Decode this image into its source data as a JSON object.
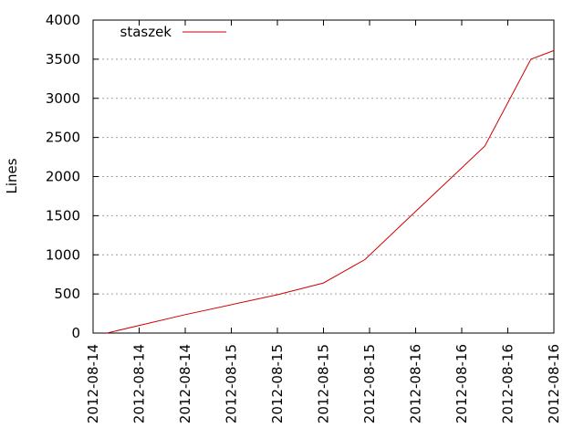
{
  "chart_data": {
    "type": "line",
    "ylabel": "Lines",
    "ylim": [
      0,
      4000
    ],
    "yticks": [
      0,
      500,
      1000,
      1500,
      2000,
      2500,
      3000,
      3500,
      4000
    ],
    "xlim": [
      0,
      10
    ],
    "xticks": [
      {
        "x": 0,
        "label": "2012-08-14"
      },
      {
        "x": 1,
        "label": "2012-08-14"
      },
      {
        "x": 2,
        "label": "2012-08-14"
      },
      {
        "x": 3,
        "label": "2012-08-15"
      },
      {
        "x": 4,
        "label": "2012-08-15"
      },
      {
        "x": 5,
        "label": "2012-08-15"
      },
      {
        "x": 6,
        "label": "2012-08-15"
      },
      {
        "x": 7,
        "label": "2012-08-16"
      },
      {
        "x": 8,
        "label": "2012-08-16"
      },
      {
        "x": 9,
        "label": "2012-08-16"
      },
      {
        "x": 10,
        "label": "2012-08-16"
      }
    ],
    "grid": "horizontal dashed",
    "legend_position": "top-left",
    "series": [
      {
        "name": "staszek",
        "color": "#cc0000",
        "points": [
          {
            "x": 0.3,
            "y": 0
          },
          {
            "x": 2.0,
            "y": 235
          },
          {
            "x": 4.0,
            "y": 490
          },
          {
            "x": 5.0,
            "y": 640
          },
          {
            "x": 5.9,
            "y": 940
          },
          {
            "x": 6.9,
            "y": 1500
          },
          {
            "x": 8.5,
            "y": 2390
          },
          {
            "x": 9.5,
            "y": 3500
          },
          {
            "x": 10.0,
            "y": 3610
          }
        ]
      }
    ]
  }
}
